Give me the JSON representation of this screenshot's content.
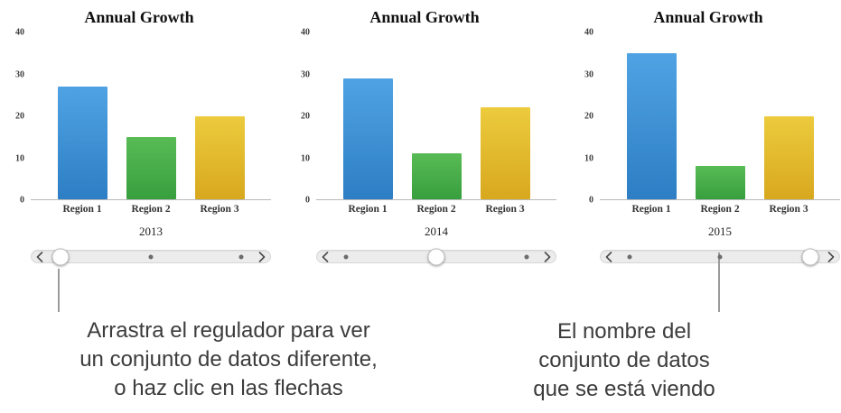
{
  "series_colors": [
    {
      "name": "Region 1",
      "top": "#4fa3e3",
      "bottom": "#2d7ec4"
    },
    {
      "name": "Region 2",
      "top": "#58bb55",
      "bottom": "#389f3e"
    },
    {
      "name": "Region 3",
      "top": "#eccb3d",
      "bottom": "#d8a81e"
    }
  ],
  "chart_data": [
    {
      "type": "bar",
      "title": "Annual Growth",
      "categories": [
        "Region 1",
        "Region 2",
        "Region 3"
      ],
      "values": [
        27,
        15,
        20
      ],
      "dataset_label": "2013",
      "xlabel": "",
      "ylabel": "",
      "ylim": [
        0,
        40
      ],
      "yticks": [
        0,
        10,
        20,
        30,
        40
      ],
      "grid": false,
      "legend": "none",
      "slider_index": 0,
      "slider_positions": 3
    },
    {
      "type": "bar",
      "title": "Annual Growth",
      "categories": [
        "Region 1",
        "Region 2",
        "Region 3"
      ],
      "values": [
        29,
        11,
        22
      ],
      "dataset_label": "2014",
      "xlabel": "",
      "ylabel": "",
      "ylim": [
        0,
        40
      ],
      "yticks": [
        0,
        10,
        20,
        30,
        40
      ],
      "grid": false,
      "legend": "none",
      "slider_index": 1,
      "slider_positions": 3
    },
    {
      "type": "bar",
      "title": "Annual Growth",
      "categories": [
        "Region 1",
        "Region 2",
        "Region 3"
      ],
      "values": [
        35,
        8,
        20
      ],
      "dataset_label": "2015",
      "xlabel": "",
      "ylabel": "",
      "ylim": [
        0,
        40
      ],
      "yticks": [
        0,
        10,
        20,
        30,
        40
      ],
      "grid": false,
      "legend": "none",
      "slider_index": 2,
      "slider_positions": 3
    }
  ],
  "slider": {
    "left_arrow_icon": "chevron-left",
    "right_arrow_icon": "chevron-right"
  },
  "callouts": {
    "left": {
      "line1": "Arrastra el regulador para ver",
      "line2": "un conjunto de datos diferente,",
      "line3": "o haz clic en las flechas"
    },
    "right": {
      "line1": "El nombre del",
      "line2": "conjunto de datos",
      "line3": "que se está viendo"
    }
  }
}
